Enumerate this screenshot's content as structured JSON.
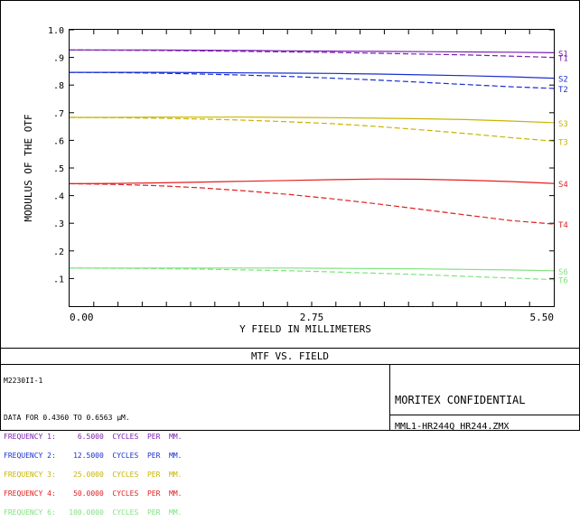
{
  "chart_data": {
    "type": "line",
    "title": "MTF VS. FIELD",
    "xlabel": "Y FIELD IN MILLIMETERS",
    "ylabel": "MODULUS OF THE OTF",
    "xlim": [
      0.0,
      5.5
    ],
    "ylim": [
      0.0,
      1.0
    ],
    "x_tick_labels": [
      "0.00",
      "2.75",
      "5.50"
    ],
    "x_tick_values": [
      0.0,
      2.75,
      5.5
    ],
    "y_tick_labels": [
      ".1",
      ".2",
      ".3",
      ".4",
      ".5",
      ".6",
      ".7",
      ".8",
      ".9",
      "1.0"
    ],
    "y_tick_values": [
      0.1,
      0.2,
      0.3,
      0.4,
      0.5,
      0.6,
      0.7,
      0.8,
      0.9,
      1.0
    ],
    "grid": false,
    "x": [
      0.0,
      0.5,
      1.0,
      1.5,
      2.0,
      2.5,
      3.0,
      3.5,
      4.0,
      4.5,
      5.0,
      5.5
    ],
    "series": [
      {
        "name": "S1",
        "color": "#7a1fb0",
        "dash": false,
        "values": [
          0.927,
          0.927,
          0.927,
          0.926,
          0.925,
          0.924,
          0.923,
          0.922,
          0.921,
          0.92,
          0.919,
          0.917
        ]
      },
      {
        "name": "T1",
        "color": "#7a1fb0",
        "dash": true,
        "values": [
          0.927,
          0.926,
          0.925,
          0.924,
          0.922,
          0.92,
          0.918,
          0.915,
          0.912,
          0.909,
          0.905,
          0.9
        ]
      },
      {
        "name": "S2",
        "color": "#1a2fd0",
        "dash": false,
        "values": [
          0.846,
          0.846,
          0.846,
          0.845,
          0.844,
          0.843,
          0.842,
          0.84,
          0.837,
          0.834,
          0.83,
          0.825
        ]
      },
      {
        "name": "T2",
        "color": "#1a2fd0",
        "dash": true,
        "values": [
          0.846,
          0.845,
          0.843,
          0.84,
          0.836,
          0.831,
          0.825,
          0.818,
          0.81,
          0.802,
          0.794,
          0.788
        ]
      },
      {
        "name": "S3",
        "color": "#c8b400",
        "dash": false,
        "values": [
          0.683,
          0.683,
          0.684,
          0.684,
          0.684,
          0.683,
          0.682,
          0.68,
          0.678,
          0.675,
          0.67,
          0.664
        ]
      },
      {
        "name": "T3",
        "color": "#c8b400",
        "dash": true,
        "values": [
          0.683,
          0.682,
          0.68,
          0.677,
          0.673,
          0.667,
          0.66,
          0.65,
          0.638,
          0.625,
          0.61,
          0.597
        ]
      },
      {
        "name": "S4",
        "color": "#e02020",
        "dash": false,
        "values": [
          0.443,
          0.444,
          0.446,
          0.449,
          0.452,
          0.455,
          0.458,
          0.46,
          0.459,
          0.456,
          0.451,
          0.444
        ]
      },
      {
        "name": "T4",
        "color": "#e02020",
        "dash": true,
        "values": [
          0.443,
          0.441,
          0.436,
          0.428,
          0.417,
          0.404,
          0.388,
          0.37,
          0.35,
          0.33,
          0.31,
          0.297
        ]
      },
      {
        "name": "S6",
        "color": "#7fe37f",
        "dash": false,
        "values": [
          0.138,
          0.138,
          0.138,
          0.138,
          0.138,
          0.138,
          0.137,
          0.136,
          0.135,
          0.133,
          0.131,
          0.128
        ]
      },
      {
        "name": "T6",
        "color": "#7fe37f",
        "dash": true,
        "values": [
          0.138,
          0.137,
          0.136,
          0.134,
          0.131,
          0.128,
          0.124,
          0.119,
          0.114,
          0.108,
          0.102,
          0.096
        ]
      }
    ]
  },
  "info": {
    "file_code": "M2230II-1",
    "data_line": "DATA FOR 0.4360 TO 0.6563 µM.",
    "frequencies": [
      {
        "text": "FREQUENCY 1:     6.5000  CYCLES  PER  MM.",
        "color": "#7a1fb0"
      },
      {
        "text": "FREQUENCY 2:    12.5000  CYCLES  PER  MM.",
        "color": "#1a2fd0"
      },
      {
        "text": "FREQUENCY 3:    25.0000  CYCLES  PER  MM.",
        "color": "#c8b400"
      },
      {
        "text": "FREQUENCY 4:    50.0000  CYCLES  PER  MM.",
        "color": "#e02020"
      },
      {
        "text": "FREQUENCY 6:   100.0000  CYCLES  PER  MM.",
        "color": "#7fe37f"
      }
    ],
    "confidential": "MORITEX CONFIDENTIAL",
    "file_name": "MML1-HR244Q HR244.ZMX"
  }
}
